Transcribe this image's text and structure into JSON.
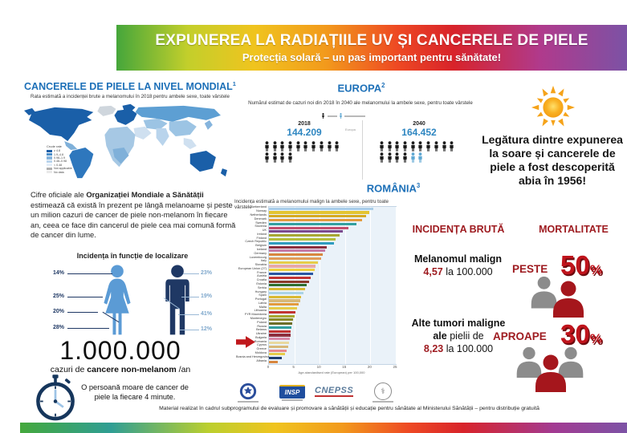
{
  "theme": {
    "heading_blue": "#1d70b8",
    "value_blue": "#2e86c1",
    "dark_red": "#9e1b20",
    "bright_red": "#c0141c",
    "navy": "#1f3864",
    "light_blue": "#5b9bd5"
  },
  "banner": {
    "title": "EXPUNEREA LA RADIAȚIILE UV ȘI CANCERELE DE PIELE",
    "subtitle": "Protecția solară – un pas important pentru sănătate!"
  },
  "world": {
    "heading": "CANCERELE DE PIELE LA NIVEL MONDIAL",
    "heading_sup": "1",
    "subtitle": "Rata estimată a incidenței brute a melanomului în 2018 pentru ambele sexe, toate vârstele",
    "legend": {
      "title": "Crude rate",
      "items": [
        {
          "label": "≥ 4.8",
          "color": "#1a5fa8"
        },
        {
          "label": "1.9–4.8",
          "color": "#4b8ec9"
        },
        {
          "label": "0.98–1.9",
          "color": "#85b4dd"
        },
        {
          "label": "0.48–0.98",
          "color": "#b9d4ec"
        },
        {
          "label": "< 0.48",
          "color": "#e3eef8"
        },
        {
          "label": "Not applicable",
          "color": "#b0b0b0"
        },
        {
          "label": "No data",
          "color": "#e8e8e8"
        }
      ]
    },
    "paragraph": {
      "prefix": "Cifre oficiale ale ",
      "bold": "Organizației Mondiale a Sănătății",
      "rest": " estimează că există în prezent pe lângă melanoame și peste un milion cazuri de cancer de piele non-melanom în fiecare an, ceea ce face din cancerul de piele cea mai comună formă de cancer din lume."
    }
  },
  "localization": {
    "title": "Incidența în funcție de localizare",
    "female_percents": [
      "14%",
      "25%",
      "20%",
      "28%"
    ],
    "male_percents": [
      "23%",
      "19%",
      "41%",
      "12%"
    ]
  },
  "million": {
    "number": "1.000.000",
    "caption_prefix": "cazuri de ",
    "caption_bold": "cancere non-melanom",
    "caption_suffix": " /an",
    "clock_text": "O persoană moare de cancer de piele la fiecare 4 minute."
  },
  "europa": {
    "heading": "EUROPA",
    "heading_sup": "2",
    "subtitle": "Numărul estimat de cazuri noi din 2018 în 2040 ale melanomului la ambele sexe, pentru toate vârstele",
    "divider_label": "Europa",
    "groups": [
      {
        "year": "2018",
        "value": "144.209",
        "people_black": 14,
        "people_blue": 0
      },
      {
        "year": "2040",
        "value": "164.452",
        "people_black": 14,
        "people_blue": 2
      }
    ]
  },
  "romania": {
    "heading": "ROMÂNIA",
    "heading_sup": "3",
    "subtitle": "Incidența estimată a melanomului malign la ambele sexe, pentru toate vârstele"
  },
  "chart_data": {
    "type": "bar",
    "orientation": "horizontal",
    "title": "Incidența estimată a melanomului malign la ambele sexe, pentru toate vârstele",
    "xlabel": "Age-standardised rate (European) per 100,000",
    "xlim": [
      0,
      25
    ],
    "x_ticks": [
      0,
      5,
      10,
      15,
      20,
      25
    ],
    "grid": true,
    "highlight": "Romania",
    "categories": [
      "Switzerland",
      "Norway",
      "Netherlands",
      "Denmark",
      "Sweden",
      "Slovenia",
      "UK",
      "Ireland",
      "Finland",
      "Czech Republic",
      "Belgium",
      "Iceland",
      "Germany",
      "Luxembourg",
      "Italy",
      "Slovakia",
      "European Union (27)",
      "France",
      "Austria",
      "Croatia",
      "Estonia",
      "Serbia",
      "Hungary",
      "Spain",
      "Portugal",
      "Latvia",
      "Malta",
      "Lithuania",
      "FYR Macedonia",
      "Montenegro",
      "Poland",
      "Russia",
      "Belarus",
      "Ukraine",
      "Bulgaria",
      "Romania",
      "Cyprus",
      "Greece",
      "Moldova",
      "Bosnia and Herzegovina",
      "Albania"
    ],
    "values": [
      20.5,
      19.8,
      19.2,
      18.3,
      17.2,
      15.6,
      14.5,
      14.0,
      13.2,
      12.8,
      11.4,
      11.0,
      10.6,
      10.3,
      9.6,
      9.2,
      9.0,
      8.7,
      8.3,
      7.9,
      7.4,
      7.1,
      6.8,
      6.4,
      6.1,
      5.8,
      5.6,
      5.3,
      5.0,
      4.8,
      4.6,
      4.5,
      4.3,
      4.2,
      4.1,
      4.0,
      3.8,
      3.5,
      3.2,
      2.6,
      1.8
    ],
    "colors": [
      "#a9cde8",
      "#e3c431",
      "#d6a921",
      "#e39b3d",
      "#32a0a0",
      "#c44f6e",
      "#7c4a8e",
      "#a8a832",
      "#b4bd3c",
      "#2f9cc0",
      "#8d2e3e",
      "#c77ba6",
      "#d8873f",
      "#e09b59",
      "#e6cc49",
      "#e8a8a8",
      "#f0d040",
      "#2a56a2",
      "#c23434",
      "#8a3a2a",
      "#2f6e2f",
      "#d9b931",
      "#a9d3e8",
      "#d9b931",
      "#d8b878",
      "#e39b3d",
      "#e6cc49",
      "#c23434",
      "#a8a832",
      "#8b8b2a",
      "#6e6e28",
      "#32a0a0",
      "#c23434",
      "#8d2e3e",
      "#d889a8",
      "#e8d9a0",
      "#d8b878",
      "#e88a8a",
      "#e6cc49",
      "#1f3d6e",
      "#d8873f"
    ]
  },
  "sun_fact": {
    "text": "Legătura dintre expunerea la soare și cancerele de piele a fost descoperită abia în 1956!"
  },
  "stats": {
    "incidence_heading": "INCIDENȚA BRUTĂ",
    "mortality_heading": "MORTALITATE",
    "melanoma_label": "Melanomul malign",
    "melanoma_value": "4,57",
    "melanoma_suffix": " la 100.000",
    "peste": "PESTE",
    "peste_pct_num": "50",
    "peste_pct_sign": "%",
    "alte_line1": "Alte tumori maligne",
    "alte_line2_bold": "ale",
    "alte_line2_rest": " pielii de",
    "alte_value": "8,23",
    "alte_suffix": " la 100.000",
    "aproape": "APROAPE",
    "aproape_pct_num": "30",
    "aproape_pct_sign": "%"
  },
  "footer": {
    "insp_label": "INSP",
    "cnepss_label": "CNEPSS",
    "medical_symbol": "⚕",
    "text": "Material realizat în cadrul subprogramului de evaluare și promovare a sănătății și educație pentru sănătate al Ministerului Sănătății – pentru distribuție gratuită"
  }
}
